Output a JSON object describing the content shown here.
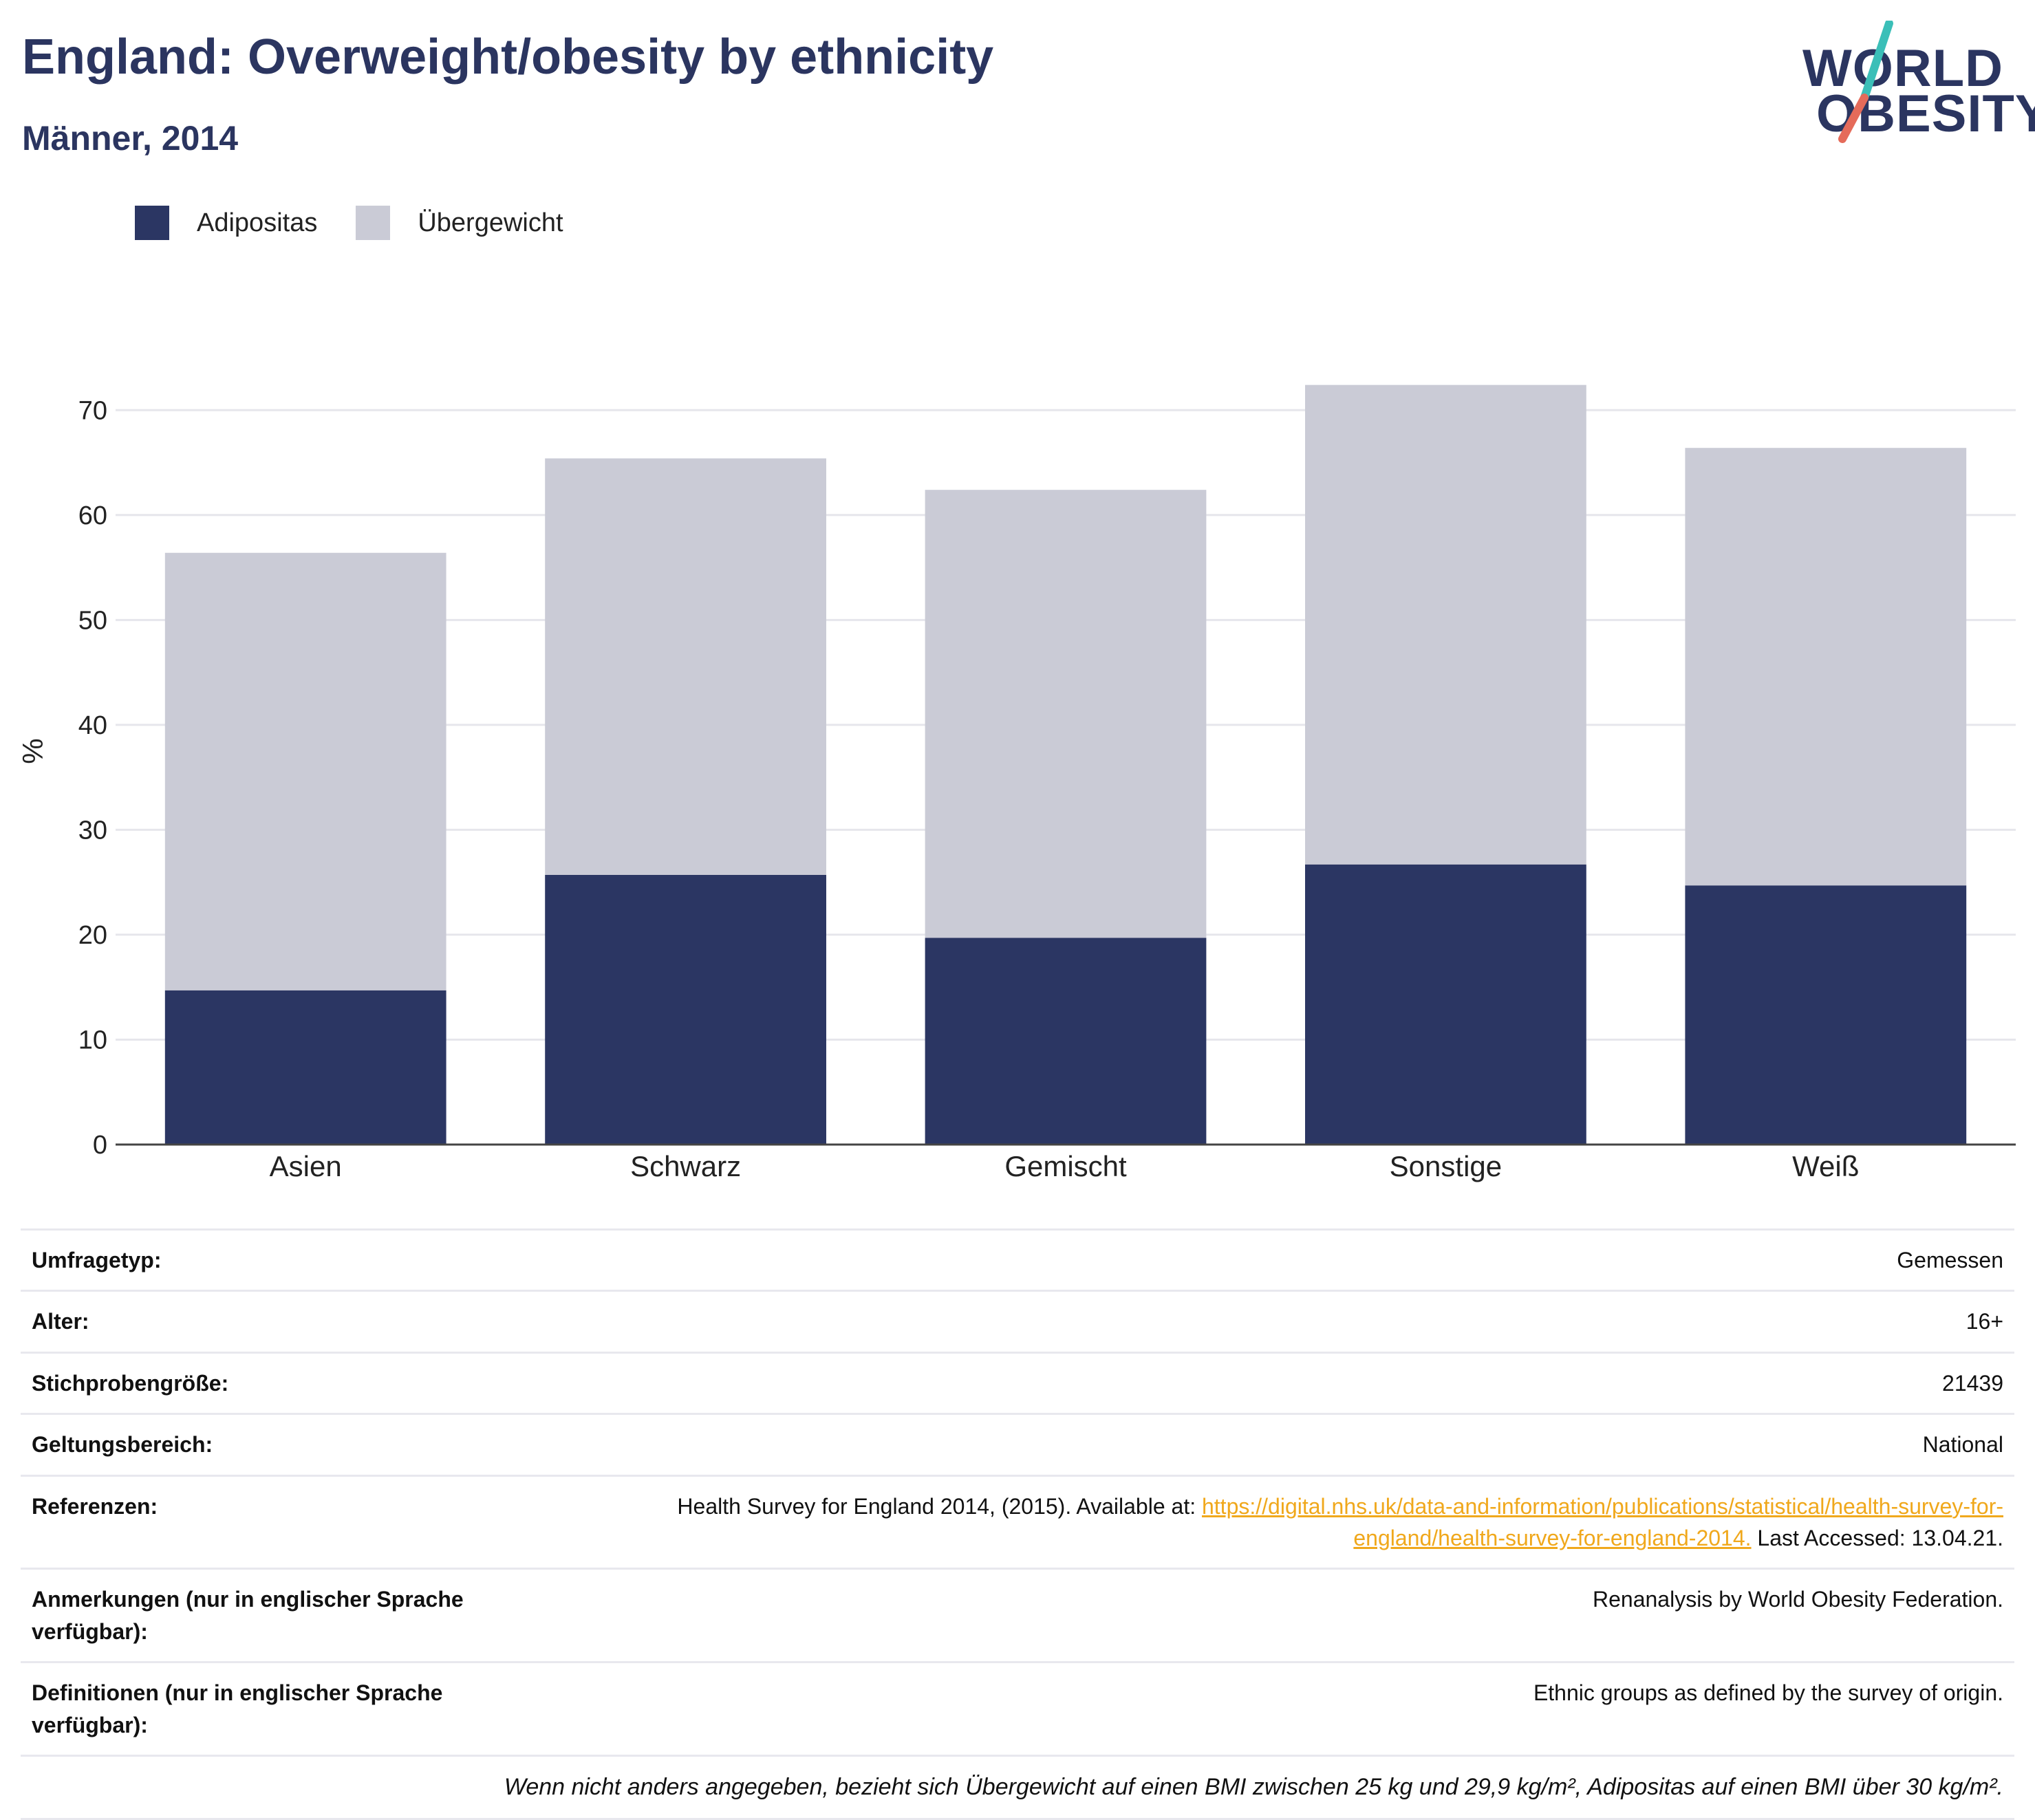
{
  "header": {
    "title": "England: Overweight/obesity by ethnicity",
    "subtitle": "Männer, 2014"
  },
  "logo": {
    "line1": "WORLD",
    "line2": "OBESITY",
    "accent_teal": "#3bbfb8",
    "accent_coral": "#e56b5a"
  },
  "legend": {
    "items": [
      {
        "label": "Adipositas",
        "color": "#2b3663"
      },
      {
        "label": "Übergewicht",
        "color": "#cacbd6"
      }
    ]
  },
  "chart_data": {
    "type": "bar",
    "stacked": true,
    "categories": [
      "Asien",
      "Schwarz",
      "Gemischt",
      "Sonstige",
      "Weiß"
    ],
    "series": [
      {
        "name": "Adipositas",
        "values": [
          14.7,
          25.7,
          19.7,
          26.7,
          24.7
        ],
        "color": "#2b3663"
      },
      {
        "name": "Übergewicht",
        "values": [
          41.7,
          39.7,
          42.7,
          45.7,
          41.7
        ],
        "color": "#cacbd6"
      }
    ],
    "ylabel": "%",
    "ylim": [
      0,
      75
    ],
    "yticks": [
      0,
      10,
      20,
      30,
      40,
      50,
      60,
      70
    ],
    "grid": true,
    "legend_position": "top-left"
  },
  "info": {
    "rows": [
      {
        "key": "Umfragetyp:",
        "value": "Gemessen"
      },
      {
        "key": "Alter:",
        "value": "16+"
      },
      {
        "key": "Stichprobengröße:",
        "value": "21439"
      },
      {
        "key": "Geltungsbereich:",
        "value": "National"
      }
    ],
    "reference": {
      "key": "Referenzen:",
      "before": "Health Survey for England 2014, (2015). Available at: ",
      "link": "https://digital.nhs.uk/data-and-information/publications/statistical/health-survey-for-england/health-survey-for-england-2014.",
      "after": " Last Accessed: 13.04.21."
    },
    "notes": {
      "key": "Anmerkungen (nur in englischer Sprache verfügbar):",
      "value": "Renanalysis by World Obesity Federation."
    },
    "definitions": {
      "key": "Definitionen (nur in englischer Sprache verfügbar):",
      "value": "Ethnic groups as defined by the survey of origin."
    },
    "footnote": "Wenn nicht anders angegeben, bezieht sich Übergewicht auf einen BMI zwischen 25 kg und 29,9 kg/m², Adipositas auf einen BMI über 30 kg/m²."
  }
}
